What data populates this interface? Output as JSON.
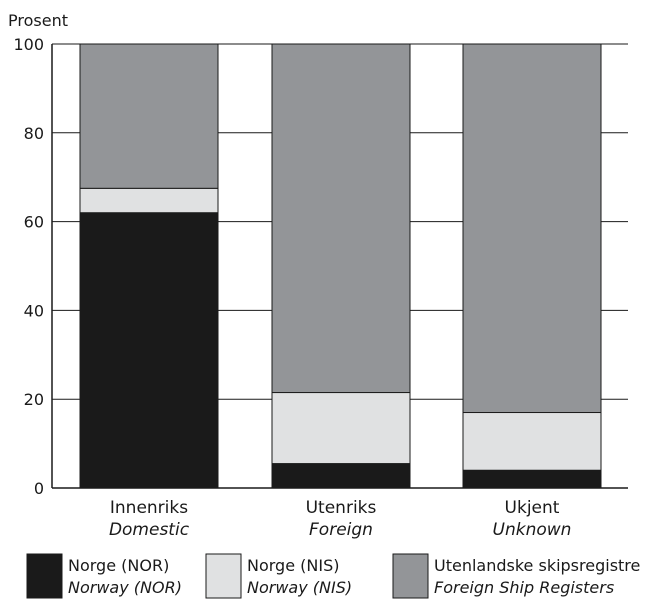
{
  "chart_data": {
    "type": "bar",
    "stacked": true,
    "ylabel": "Prosent",
    "ylim": [
      0,
      100
    ],
    "yticks": [
      0,
      20,
      40,
      60,
      80,
      100
    ],
    "grid": true,
    "categories": [
      {
        "label": "Innenriks",
        "sublabel": "Domestic"
      },
      {
        "label": "Utenriks",
        "sublabel": "Foreign"
      },
      {
        "label": "Ukjent",
        "sublabel": "Unknown"
      }
    ],
    "series": [
      {
        "name": "Norge (NOR)",
        "subname": "Norway (NOR)",
        "color": "#1a1a1a",
        "values": [
          62,
          5.5,
          4
        ]
      },
      {
        "name": "Norge (NIS)",
        "subname": "Norway (NIS)",
        "color": "#e0e1e2",
        "values": [
          5.5,
          16,
          13
        ]
      },
      {
        "name": "Utenlandske skipsregistre",
        "subname": "Foreign Ship Registers",
        "color": "#939598",
        "values": [
          32.5,
          78.5,
          83
        ]
      }
    ],
    "legend_position": "bottom"
  }
}
